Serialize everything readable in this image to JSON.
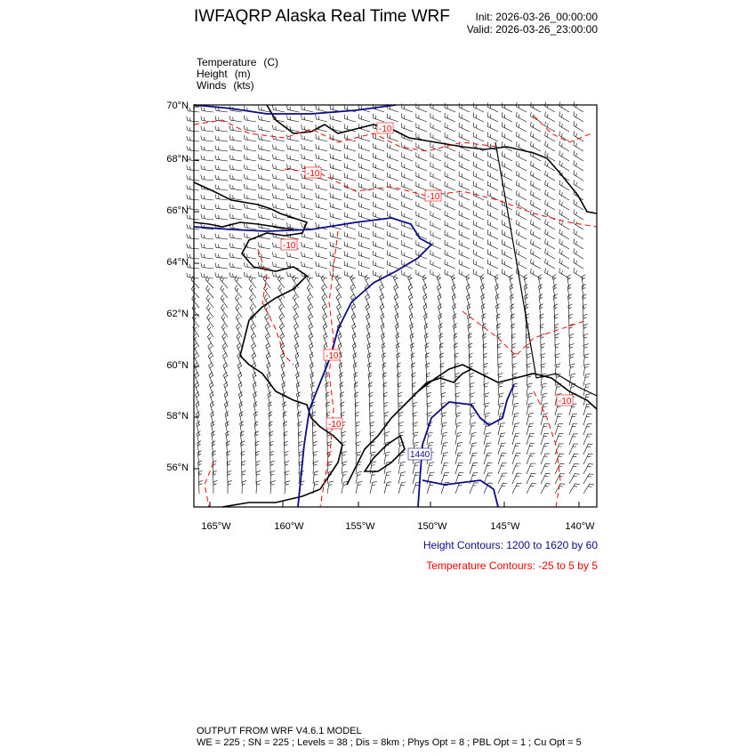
{
  "header": {
    "title": "IWFAQRP Alaska Real Time WRF",
    "init": "Init: 2026-03-26_00:00:00",
    "valid": "Valid: 2026-03-26_23:00:00"
  },
  "fields": [
    {
      "name": "Temperature",
      "unit": "(C)"
    },
    {
      "name": "Height",
      "unit": "(m)"
    },
    {
      "name": "Winds",
      "unit": "(kts)"
    }
  ],
  "map": {
    "lat_labels": [
      "70°N",
      "68°N",
      "66°N",
      "64°N",
      "62°N",
      "60°N",
      "58°N",
      "56°N"
    ],
    "lon_labels": [
      "165°W",
      "160°W",
      "155°W",
      "150°W",
      "145°W",
      "140°W"
    ],
    "temp_labels": [
      "-10",
      "-10",
      "-10",
      "-10",
      "-10",
      "-10",
      "-10"
    ],
    "height_labels": [
      "1440"
    ],
    "colors": {
      "height": "#0b0b8a",
      "temperature": "#ff0000",
      "coast": "#000000",
      "barbs": "#000000"
    }
  },
  "legend": {
    "height": "Height Contours: 1200 to 1620 by 60",
    "temperature": "Temperature Contours: -25 to 5 by 5"
  },
  "footer": {
    "line1": "OUTPUT FROM WRF V4.6.1 MODEL",
    "line2": "WE = 225 ; SN = 225 ; Levels = 38 ; Dis = 8km ; Phys Opt = 8 ; PBL Opt = 1 ; Cu Opt = 5"
  }
}
